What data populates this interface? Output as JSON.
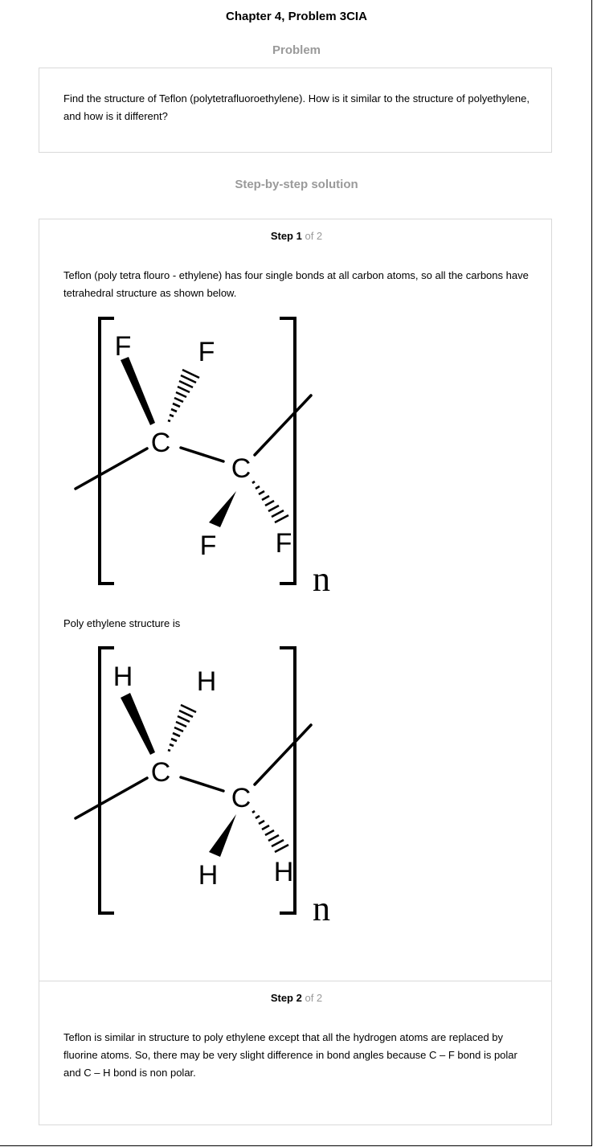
{
  "header": {
    "title": "Chapter 4, Problem 3CIA",
    "problem_heading": "Problem",
    "solution_heading": "Step-by-step solution"
  },
  "problem": {
    "text": "Find the structure of Teflon (polytetrafluoroethylene). How is it similar to the structure of polyethylene, and how is it different?"
  },
  "steps": [
    {
      "label": "Step 1",
      "of": "of 2",
      "text": "Teflon (poly tetra flouro - ethylene) has four single bonds at all carbon atoms, so all the carbons have tetrahedral structure as shown below.",
      "structure": {
        "carbon": "C",
        "substituent": "F",
        "repeat": "n"
      },
      "text2": "Poly ethylene structure is",
      "structure2": {
        "carbon": "C",
        "substituent": "H",
        "repeat": "n"
      }
    },
    {
      "label": "Step 2",
      "of": "of 2",
      "text": "Teflon is similar in structure to poly ethylene except that all the hydrogen atoms are replaced by fluorine atoms. So, there may be very slight difference in bond angles because C – F bond is polar and C – H bond is non polar."
    }
  ]
}
